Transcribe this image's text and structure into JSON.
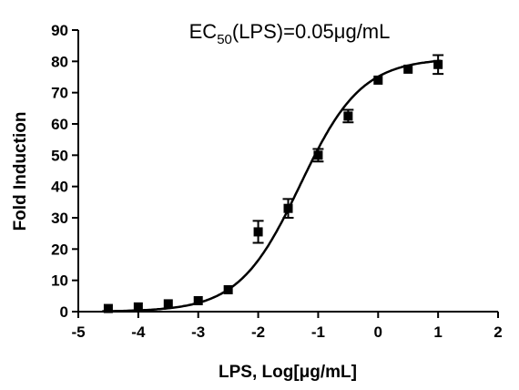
{
  "chart_data": {
    "type": "scatter",
    "title": [
      "EC",
      "50",
      "(LPS)=0.05μg/mL"
    ],
    "x_label": "LPS, Log[μg/mL]",
    "y_label": "Fold Induction",
    "color": "#000000",
    "series": [
      {
        "x": [
          -4.5,
          -4,
          -3.5,
          -3,
          -2.5,
          -2,
          -1.5,
          -1,
          -0.5,
          0,
          0.5,
          1
        ],
        "values": [
          1,
          1.5,
          2.5,
          3.5,
          7,
          25.5,
          33,
          50,
          62.5,
          74,
          77.5,
          79
        ],
        "errors": [
          0,
          0,
          0,
          0,
          0,
          3.5,
          3,
          2,
          2,
          0,
          0,
          3
        ]
      }
    ],
    "curve": {
      "bottom": 0,
      "top": 81,
      "log_ec50": -1.3,
      "hill": 0.85
    },
    "xlim": [
      -5,
      2
    ],
    "xticks": [
      -5,
      -4,
      -3,
      -2,
      -1,
      0,
      1,
      2
    ],
    "ylim": [
      0,
      90
    ],
    "yticks": [
      0,
      10,
      20,
      30,
      40,
      50,
      60,
      70,
      80,
      90
    ]
  }
}
